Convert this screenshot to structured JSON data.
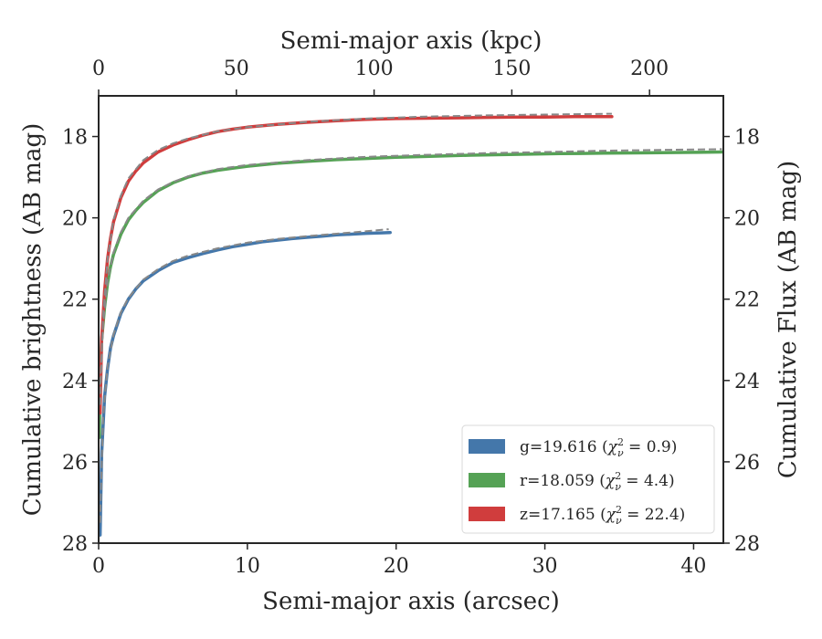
{
  "chart_data": {
    "type": "line",
    "xlabel": "Semi-major axis (arcsec)",
    "xlabel_top": "Semi-major axis (kpc)",
    "ylabel": "Cumulative brightness (AB mag)",
    "ylabel_right": "Cumulative Flux (AB mag)",
    "xlim": [
      0,
      42
    ],
    "ylim": [
      28,
      17
    ],
    "y_inverted": true,
    "x_ticks": [
      0,
      10,
      20,
      30,
      40
    ],
    "x_tick_labels": [
      "0",
      "10",
      "20",
      "30",
      "40"
    ],
    "x_top_per_arcsec": 5.4,
    "x_top_ticks": [
      0,
      50,
      100,
      150,
      200
    ],
    "x_top_tick_labels": [
      "0",
      "50",
      "100",
      "150",
      "200"
    ],
    "y_ticks": [
      18,
      20,
      22,
      24,
      26,
      28
    ],
    "y_tick_labels": [
      "18",
      "20",
      "22",
      "24",
      "26",
      "28"
    ],
    "grid": false,
    "legend_position": "lower-right",
    "series": [
      {
        "name": "g=19.616 (χ²ᵥ = 0.9)",
        "band": "g",
        "mag": "19.616",
        "chi2": "0.9",
        "color": "#4477aa",
        "x": [
          0.1,
          0.2,
          0.4,
          0.6,
          0.8,
          1.0,
          1.5,
          2.0,
          2.5,
          3.0,
          4.0,
          5.0,
          6.0,
          7.0,
          8.0,
          9.0,
          10.0,
          11.0,
          12.0,
          13.0,
          14.0,
          15.0,
          16.0,
          17.0,
          18.0,
          19.0,
          19.6
        ],
        "y": [
          27.8,
          25.8,
          24.4,
          23.7,
          23.2,
          22.9,
          22.35,
          22.0,
          21.75,
          21.55,
          21.3,
          21.1,
          20.98,
          20.88,
          20.79,
          20.71,
          20.65,
          20.59,
          20.55,
          20.51,
          20.48,
          20.45,
          20.42,
          20.4,
          20.38,
          20.37,
          20.36
        ]
      },
      {
        "name": "r=18.059 (χ²ᵥ = 4.4)",
        "band": "r",
        "mag": "18.059",
        "chi2": "4.4",
        "color": "#55a255",
        "x": [
          0.05,
          0.1,
          0.2,
          0.4,
          0.6,
          0.8,
          1.0,
          1.5,
          2.0,
          2.5,
          3.0,
          4.0,
          5.0,
          6.0,
          7.0,
          8.0,
          10.0,
          12.0,
          14.0,
          16.0,
          18.0,
          20.0,
          22.0,
          25.0,
          28.0,
          31.0,
          34.0,
          37.0,
          40.0,
          41.9
        ],
        "y": [
          25.4,
          24.0,
          23.0,
          22.2,
          21.6,
          21.2,
          20.9,
          20.4,
          20.05,
          19.82,
          19.62,
          19.33,
          19.14,
          19.0,
          18.9,
          18.83,
          18.73,
          18.66,
          18.61,
          18.57,
          18.54,
          18.51,
          18.49,
          18.46,
          18.44,
          18.42,
          18.41,
          18.4,
          18.39,
          18.38
        ]
      },
      {
        "name": "z=17.165 (χ²ᵥ = 22.4)",
        "band": "z",
        "mag": "17.165",
        "chi2": "22.4",
        "color": "#d03d3d",
        "x": [
          0.1,
          0.2,
          0.4,
          0.6,
          0.8,
          1.0,
          1.5,
          2.0,
          2.5,
          3.0,
          4.0,
          5.0,
          6.0,
          7.0,
          8.0,
          9.0,
          10.0,
          12.0,
          14.0,
          16.0,
          18.0,
          20.0,
          22.0,
          24.0,
          26.0,
          28.0,
          30.0,
          32.0,
          34.5
        ],
        "y": [
          24.8,
          23.0,
          21.8,
          21.0,
          20.5,
          20.1,
          19.5,
          19.1,
          18.85,
          18.65,
          18.38,
          18.21,
          18.08,
          17.97,
          17.88,
          17.82,
          17.77,
          17.7,
          17.65,
          17.61,
          17.58,
          17.56,
          17.55,
          17.54,
          17.53,
          17.52,
          17.52,
          17.51,
          17.51
        ]
      }
    ],
    "model_lines": [
      {
        "color": "#888888",
        "x": [
          0.1,
          0.3,
          0.6,
          1.0,
          1.5,
          2.0,
          3.0,
          4.0,
          5.0,
          6.0,
          8.0,
          10.0,
          12.0,
          14.0,
          16.0,
          18.0,
          19.5
        ],
        "y": [
          27.5,
          24.9,
          23.65,
          22.87,
          22.32,
          21.97,
          21.52,
          21.26,
          21.06,
          20.93,
          20.75,
          20.61,
          20.52,
          20.45,
          20.39,
          20.33,
          20.28
        ]
      },
      {
        "color": "#888888",
        "x": [
          0.1,
          0.3,
          0.6,
          1.0,
          1.5,
          2.0,
          3.0,
          4.0,
          5.0,
          6.0,
          8.0,
          10.0,
          14.0,
          18.0,
          22.0,
          26.0,
          30.0,
          34.0,
          38.0,
          41.9
        ],
        "y": [
          24.1,
          22.6,
          21.55,
          20.85,
          20.35,
          20.0,
          19.58,
          19.3,
          19.12,
          18.98,
          18.8,
          18.7,
          18.58,
          18.5,
          18.45,
          18.41,
          18.38,
          18.35,
          18.33,
          18.31
        ]
      },
      {
        "color": "#888888",
        "x": [
          0.1,
          0.3,
          0.6,
          1.0,
          1.5,
          2.0,
          3.0,
          4.0,
          5.0,
          6.0,
          8.0,
          10.0,
          14.0,
          18.0,
          22.0,
          26.0,
          30.0,
          34.5
        ],
        "y": [
          24.6,
          22.4,
          21.0,
          20.05,
          19.45,
          19.03,
          18.58,
          18.33,
          18.17,
          18.05,
          17.87,
          17.77,
          17.64,
          17.56,
          17.51,
          17.48,
          17.46,
          17.44
        ]
      }
    ]
  }
}
